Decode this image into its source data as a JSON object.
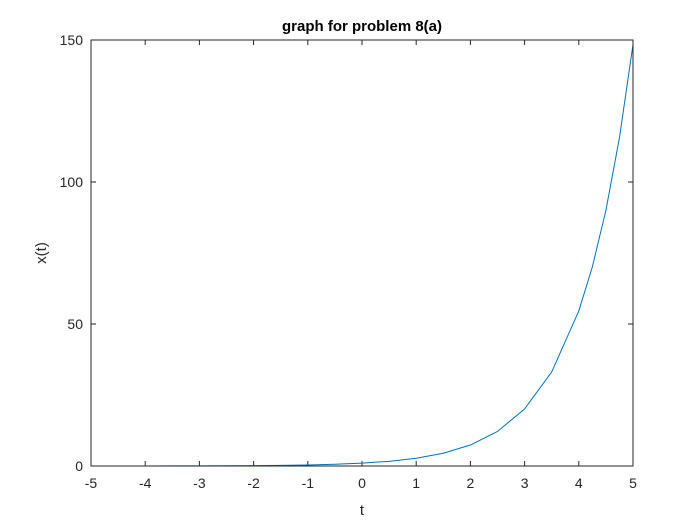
{
  "chart_data": {
    "type": "line",
    "title": "graph for problem 8(a)",
    "xlabel": "t",
    "ylabel": "x(t)",
    "xlim": [
      -5,
      5
    ],
    "ylim": [
      0,
      150
    ],
    "xticks": [
      -5,
      -4,
      -3,
      -2,
      -1,
      0,
      1,
      2,
      3,
      4,
      5
    ],
    "yticks": [
      0,
      50,
      100,
      150
    ],
    "xtick_labels": [
      "-5",
      "-4",
      "-3",
      "-2",
      "-1",
      "0",
      "1",
      "2",
      "3",
      "4",
      "5"
    ],
    "ytick_labels": [
      "0",
      "50",
      "100",
      "150"
    ],
    "grid": false,
    "legend": "none",
    "series": [
      {
        "color": "#0072BD",
        "x": [
          -5,
          -4.5,
          -4,
          -3.5,
          -3,
          -2.5,
          -2,
          -1.5,
          -1,
          -0.5,
          0,
          0.5,
          1,
          1.5,
          2,
          2.5,
          3,
          3.5,
          4,
          4.25,
          4.5,
          4.75,
          5
        ],
        "y": [
          0.0067,
          0.0111,
          0.0183,
          0.0302,
          0.0498,
          0.0821,
          0.1353,
          0.2231,
          0.3679,
          0.6065,
          1.0,
          1.6487,
          2.7183,
          4.4817,
          7.3891,
          12.1825,
          20.0855,
          33.1155,
          54.5982,
          70.1054,
          90.0171,
          115.5843,
          148.4132
        ]
      }
    ]
  }
}
